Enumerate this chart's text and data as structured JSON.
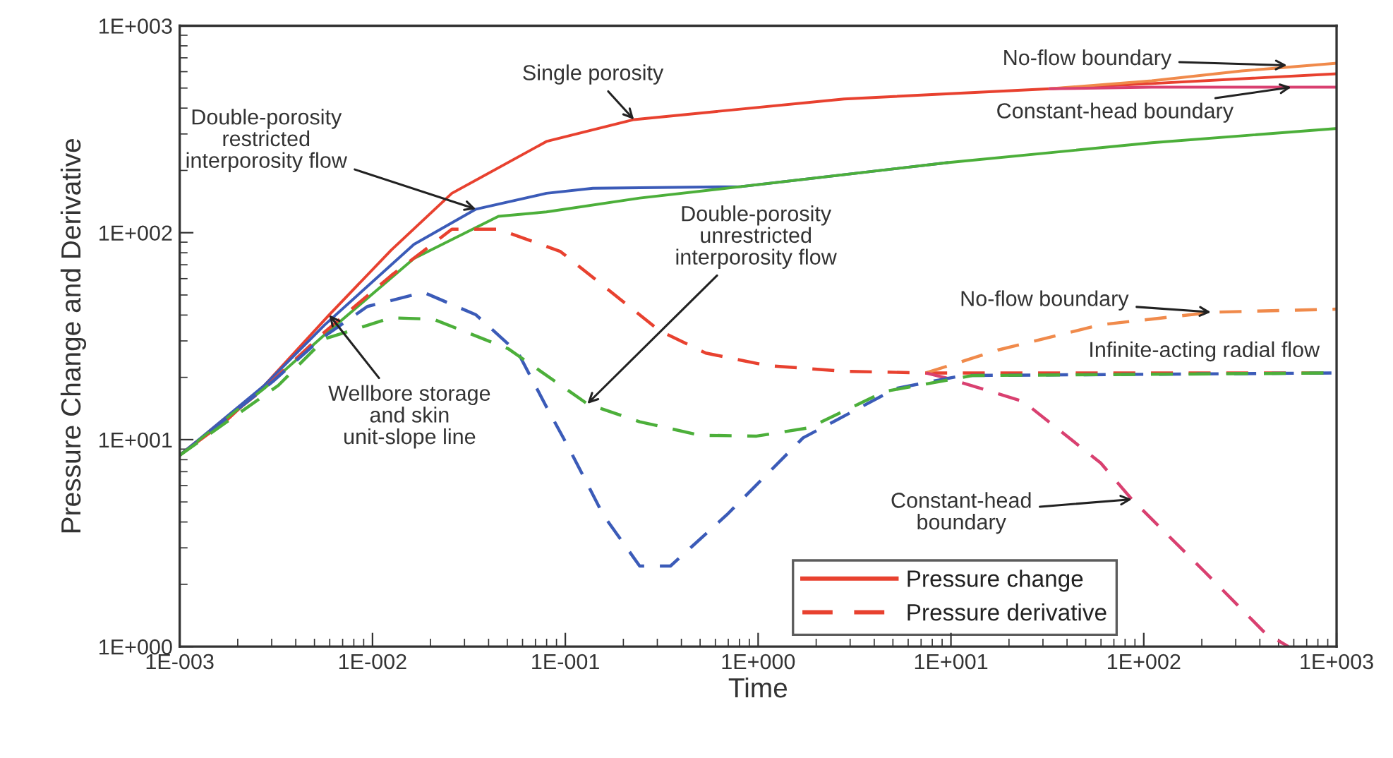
{
  "chart_data": {
    "type": "line",
    "xlabel": "Time",
    "ylabel": "Pressure Change and Derivative",
    "log": "xy",
    "xlim": [
      0.001,
      1000
    ],
    "ylim": [
      1,
      1000
    ],
    "xticks": [
      {
        "value": 0.001,
        "label": "1E-003"
      },
      {
        "value": 0.01,
        "label": "1E-002"
      },
      {
        "value": 0.1,
        "label": "1E-001"
      },
      {
        "value": 1,
        "label": "1E+000"
      },
      {
        "value": 10,
        "label": "1E+001"
      },
      {
        "value": 100,
        "label": "1E+002"
      },
      {
        "value": 1000,
        "label": "1E+003"
      }
    ],
    "yticks": [
      {
        "value": 1,
        "label": "1E+000"
      },
      {
        "value": 10,
        "label": "1E+001"
      },
      {
        "value": 100,
        "label": "1E+002"
      },
      {
        "value": 1000,
        "label": "1E+003"
      }
    ],
    "grid": false,
    "legend": "bottom",
    "marker": "none",
    "series": [
      {
        "name": "Pressure change",
        "color": "#e8412f",
        "line_style": "solid",
        "x": [
          0.001,
          0.00174,
          0.00275,
          0.00596,
          0.0125,
          0.0258,
          0.0798,
          0.227,
          2.79,
          32.6,
          110,
          1000
        ],
        "values": [
          8.4,
          12.3,
          18.3,
          40.1,
          82.4,
          155,
          276,
          352,
          443,
          496,
          526,
          586
        ]
      },
      {
        "color": "#f08a4b",
        "line_style": "solid",
        "x": [
          32.6,
          110,
          322,
          1000
        ],
        "values": [
          496,
          542,
          605,
          659
        ]
      },
      {
        "color": "#d94070",
        "line_style": "solid",
        "x": [
          32.6,
          110,
          1000
        ],
        "values": [
          496,
          505,
          505
        ]
      },
      {
        "color": "#3b5bb8",
        "line_style": "solid",
        "x": [
          0.001,
          0.00275,
          0.00566,
          0.0164,
          0.0344,
          0.0798,
          0.139,
          0.815,
          9.55
        ],
        "values": [
          8.4,
          18.3,
          35.9,
          87.8,
          130,
          155,
          164,
          167,
          218
        ]
      },
      {
        "color": "#4caf3a",
        "line_style": "solid",
        "x": [
          0.001,
          0.00275,
          0.00566,
          0.0164,
          0.045,
          0.0798,
          0.243,
          0.815,
          9.55,
          110,
          1000
        ],
        "values": [
          8.4,
          17.7,
          32.2,
          75.0,
          120,
          126,
          147,
          167,
          218,
          272,
          319
        ]
      },
      {
        "name": "Pressure derivative",
        "color": "#e8412f",
        "line_style": "dashed",
        "x": [
          0.001,
          0.00275,
          0.00566,
          0.0125,
          0.0258,
          0.045,
          0.0944,
          0.307,
          0.535,
          1.12,
          2.79,
          7.41,
          1000
        ],
        "values": [
          8.4,
          17.7,
          33.2,
          62.1,
          104,
          104,
          81.1,
          33.7,
          26.2,
          22.8,
          21.4,
          21,
          21
        ]
      },
      {
        "color": "#f08a4b",
        "line_style": "dashed",
        "x": [
          7.41,
          17.5,
          59.8,
          230,
          1000
        ],
        "values": [
          21,
          27.1,
          35.9,
          41.3,
          42.7
        ]
      },
      {
        "color": "#d94070",
        "line_style": "dashed",
        "x": [
          7.41,
          9.55,
          23.7,
          59.8,
          86.7,
          205,
          423,
          562
        ],
        "values": [
          21,
          19.8,
          15.3,
          7.71,
          5.15,
          2.32,
          1.17,
          1.0
        ]
      },
      {
        "color": "#3b5bb8",
        "line_style": "dashed",
        "x": [
          0.001,
          0.00304,
          0.0054,
          0.0094,
          0.0184,
          0.0344,
          0.057,
          0.0798,
          0.104,
          0.157,
          0.243,
          0.351,
          0.689,
          1.71,
          5.2,
          11.5,
          1000
        ],
        "values": [
          8.4,
          19.1,
          30.7,
          44.0,
          51.5,
          40.1,
          26.2,
          14.4,
          9.16,
          4.34,
          2.45,
          2.45,
          4.34,
          10.2,
          17.7,
          20.4,
          21
        ]
      },
      {
        "color": "#4caf3a",
        "line_style": "dashed",
        "x": [
          0.001,
          0.00325,
          0.00566,
          0.0125,
          0.0207,
          0.0506,
          0.13,
          0.243,
          0.5,
          0.982,
          1.83,
          4.55,
          12.9,
          1000
        ],
        "values": [
          8.4,
          18.3,
          30.7,
          38.8,
          38.2,
          27.5,
          14.9,
          12.2,
          10.5,
          10.4,
          11.4,
          17.1,
          20.4,
          21
        ]
      }
    ],
    "annotations": [
      {
        "text": "Single porosity",
        "x": 0.227,
        "y": 352
      },
      {
        "text": "Double-porosity\nrestricted\ninterporosity flow",
        "x": 0.0344,
        "y": 130
      },
      {
        "text": "Double-porosity\nunrestricted\ninterporosity flow",
        "x": 0.13,
        "y": 14.9
      },
      {
        "text": "Wellbore storage\nand skin\nunit-slope line",
        "x": 0.00596,
        "y": 40.1
      },
      {
        "text": "No-flow boundary",
        "x": 553,
        "y": 644
      },
      {
        "text": "Constant-head boundary",
        "x": 582,
        "y": 505
      },
      {
        "text": "No-flow boundary",
        "x": 223,
        "y": 41.3
      },
      {
        "text": "Infinite-acting radial flow",
        "x": 272,
        "y": 21
      },
      {
        "text": "Constant-head\nboundary",
        "x": 86.7,
        "y": 5.15
      }
    ]
  }
}
